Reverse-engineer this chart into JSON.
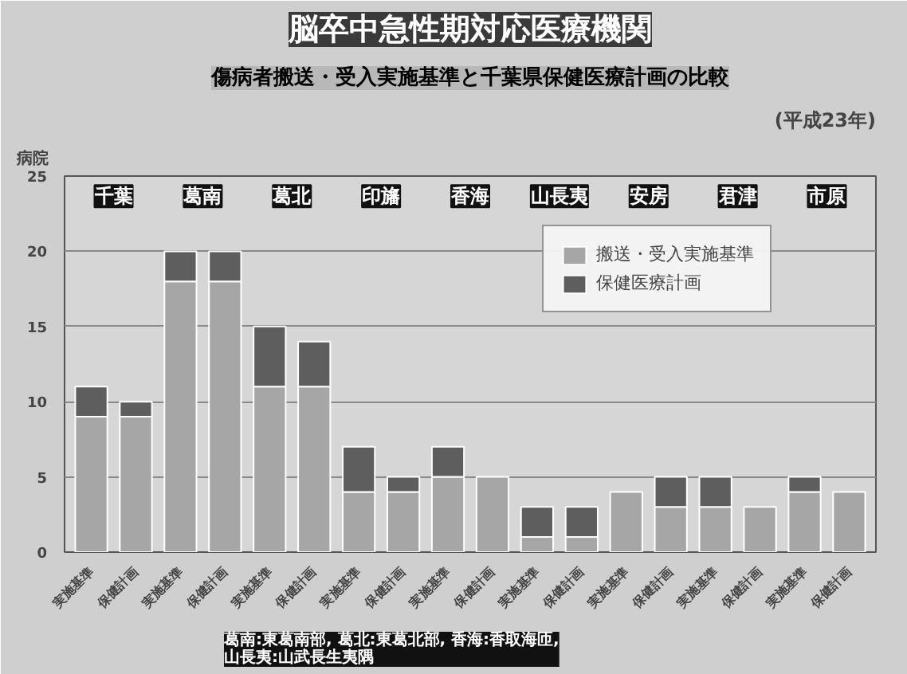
{
  "chart_data": {
    "type": "bar",
    "stacked": true,
    "title": "脳卒中急性期対応医療機関",
    "subtitle": "傷病者搬送・受入実施基準と千葉県保健医療計画の比較",
    "ylabel": "病院",
    "categories": [
      "実施基準",
      "保健計画",
      "実施基準",
      "保健計画",
      "実施基準",
      "保健計画",
      "実施基準",
      "保健計画",
      "実施基準",
      "保健計画",
      "実施基準",
      "保健計画",
      "実施基準",
      "保健計画",
      "実施基準",
      "保健計画",
      "実施基準",
      "保健計画"
    ],
    "series": [
      {
        "name": "搬送・受入実施基準",
        "color": "#a6a6a6",
        "values": [
          9,
          9,
          18,
          18,
          11,
          11,
          4,
          4,
          5,
          5,
          1,
          1,
          4,
          3,
          3,
          3,
          4,
          4
        ]
      },
      {
        "name": "保健医療計画",
        "color": "#5e5e5e",
        "values": [
          2,
          1,
          2,
          2,
          4,
          3,
          3,
          1,
          2,
          null,
          2,
          2,
          null,
          2,
          2,
          null,
          1,
          null
        ]
      }
    ],
    "ylim": [
      0,
      25
    ],
    "yticks": [
      0,
      5,
      10,
      15,
      20,
      25
    ],
    "grid": "y",
    "legend": "top right",
    "annotations": [
      "千葉",
      "葛南",
      "葛北",
      "印旛",
      "香海",
      "山長夷",
      "安房",
      "君津",
      "市原",
      "(平成23年)",
      "葛南:東葛南部, 葛北:東葛北部, 香海:香取海匝,\n山長夷:山武長生夷隅"
    ]
  }
}
